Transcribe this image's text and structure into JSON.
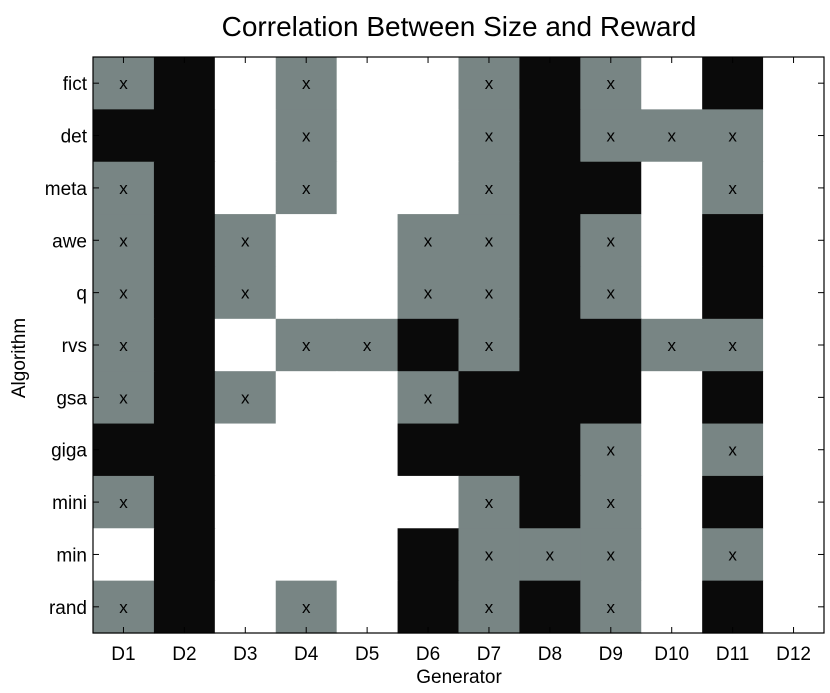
{
  "chart_data": {
    "type": "heatmap",
    "title": "Correlation Between Size and Reward",
    "xlabel": "Generator",
    "ylabel": "Algorithm",
    "x_categories": [
      "D1",
      "D2",
      "D3",
      "D4",
      "D5",
      "D6",
      "D7",
      "D8",
      "D9",
      "D10",
      "D11",
      "D12"
    ],
    "y_categories": [
      "fict",
      "det",
      "meta",
      "awe",
      "q",
      "rvs",
      "gsa",
      "giga",
      "mini",
      "min",
      "rand"
    ],
    "legend": "none",
    "grid": false,
    "color_map": {
      "black": "#0a0a0a",
      "gray": "#788584",
      "white": "#ffffff"
    },
    "cells": [
      [
        "gray",
        "black",
        "white",
        "gray",
        "white",
        "white",
        "gray",
        "black",
        "gray",
        "white",
        "black",
        "white"
      ],
      [
        "black",
        "black",
        "white",
        "gray",
        "white",
        "white",
        "gray",
        "black",
        "gray",
        "gray",
        "gray",
        "white"
      ],
      [
        "gray",
        "black",
        "white",
        "gray",
        "white",
        "white",
        "gray",
        "black",
        "black",
        "white",
        "gray",
        "white"
      ],
      [
        "gray",
        "black",
        "gray",
        "white",
        "white",
        "gray",
        "gray",
        "black",
        "gray",
        "white",
        "black",
        "white"
      ],
      [
        "gray",
        "black",
        "gray",
        "white",
        "white",
        "gray",
        "gray",
        "black",
        "gray",
        "white",
        "black",
        "white"
      ],
      [
        "gray",
        "black",
        "white",
        "gray",
        "gray",
        "black",
        "gray",
        "black",
        "black",
        "gray",
        "gray",
        "white"
      ],
      [
        "gray",
        "black",
        "gray",
        "white",
        "white",
        "gray",
        "black",
        "black",
        "black",
        "white",
        "black",
        "white"
      ],
      [
        "black",
        "black",
        "white",
        "white",
        "white",
        "black",
        "black",
        "black",
        "gray",
        "white",
        "gray",
        "white"
      ],
      [
        "gray",
        "black",
        "white",
        "white",
        "white",
        "white",
        "gray",
        "black",
        "gray",
        "white",
        "black",
        "white"
      ],
      [
        "white",
        "black",
        "white",
        "white",
        "white",
        "black",
        "gray",
        "gray",
        "gray",
        "white",
        "gray",
        "white"
      ],
      [
        "gray",
        "black",
        "white",
        "gray",
        "white",
        "black",
        "gray",
        "black",
        "gray",
        "white",
        "black",
        "white"
      ]
    ],
    "marker": "x",
    "marked": [
      [
        1,
        0,
        0,
        1,
        0,
        0,
        1,
        0,
        1,
        0,
        0,
        0
      ],
      [
        0,
        0,
        0,
        1,
        0,
        0,
        1,
        0,
        1,
        1,
        1,
        0
      ],
      [
        1,
        0,
        0,
        1,
        0,
        0,
        1,
        0,
        0,
        0,
        1,
        0
      ],
      [
        1,
        0,
        1,
        0,
        0,
        1,
        1,
        0,
        1,
        0,
        0,
        0
      ],
      [
        1,
        0,
        1,
        0,
        0,
        1,
        1,
        0,
        1,
        0,
        0,
        0
      ],
      [
        1,
        0,
        0,
        1,
        1,
        0,
        1,
        0,
        0,
        1,
        1,
        0
      ],
      [
        1,
        0,
        1,
        0,
        0,
        1,
        0,
        0,
        0,
        0,
        0,
        0
      ],
      [
        0,
        0,
        0,
        0,
        0,
        0,
        0,
        0,
        1,
        0,
        1,
        0
      ],
      [
        1,
        0,
        0,
        0,
        0,
        0,
        1,
        0,
        1,
        0,
        0,
        0
      ],
      [
        0,
        0,
        0,
        0,
        0,
        0,
        1,
        1,
        1,
        0,
        1,
        0
      ],
      [
        1,
        0,
        0,
        1,
        0,
        0,
        1,
        0,
        1,
        0,
        0,
        0
      ]
    ]
  }
}
